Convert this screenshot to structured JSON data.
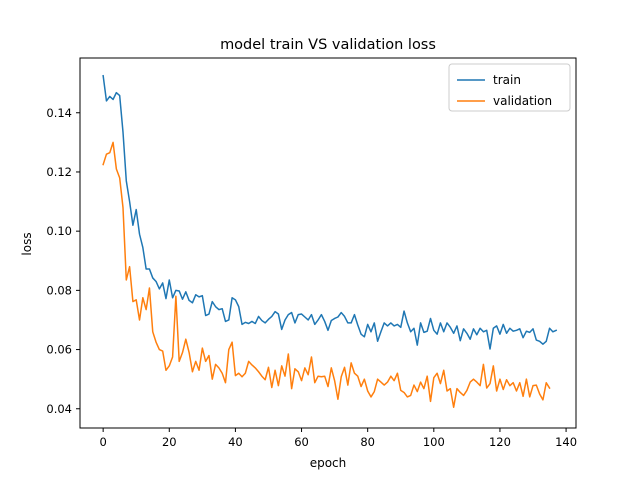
{
  "chart_data": {
    "type": "line",
    "title": "model train VS validation loss",
    "xlabel": "epoch",
    "ylabel": "loss",
    "xlim": [
      -7,
      143
    ],
    "ylim": [
      0.0335,
      0.1585
    ],
    "xticks": [
      0,
      20,
      40,
      60,
      80,
      100,
      120,
      140
    ],
    "yticks": [
      0.04,
      0.06,
      0.08,
      0.1,
      0.12,
      0.14
    ],
    "ytick_labels": [
      "0.04",
      "0.06",
      "0.08",
      "0.10",
      "0.12",
      "0.14"
    ],
    "grid": false,
    "legend_position": "top-right",
    "series": [
      {
        "name": "train",
        "color": "#1f77b4",
        "values": [
          0.1525,
          0.144,
          0.1455,
          0.1445,
          0.1468,
          0.1458,
          0.1335,
          0.117,
          0.11,
          0.102,
          0.1073,
          0.099,
          0.0945,
          0.0872,
          0.0872,
          0.0842,
          0.083,
          0.0805,
          0.0825,
          0.0772,
          0.0835,
          0.0775,
          0.08,
          0.0798,
          0.077,
          0.0795,
          0.0766,
          0.0758,
          0.0785,
          0.0778,
          0.0782,
          0.0715,
          0.072,
          0.0762,
          0.0745,
          0.0735,
          0.0738,
          0.0695,
          0.07,
          0.0775,
          0.0768,
          0.0745,
          0.0685,
          0.0692,
          0.0688,
          0.0695,
          0.0688,
          0.0712,
          0.0698,
          0.069,
          0.0702,
          0.0712,
          0.0728,
          0.072,
          0.0668,
          0.07,
          0.0718,
          0.0725,
          0.069,
          0.0718,
          0.072,
          0.071,
          0.07,
          0.0718,
          0.0685,
          0.07,
          0.0718,
          0.0695,
          0.0665,
          0.0698,
          0.0705,
          0.071,
          0.0725,
          0.0712,
          0.069,
          0.069,
          0.0718,
          0.0683,
          0.0652,
          0.0643,
          0.0685,
          0.066,
          0.069,
          0.0628,
          0.066,
          0.069,
          0.068,
          0.069,
          0.068,
          0.0685,
          0.0675,
          0.073,
          0.069,
          0.066,
          0.0672,
          0.0615,
          0.069,
          0.0658,
          0.0662,
          0.0705,
          0.0665,
          0.0652,
          0.069,
          0.066,
          0.069,
          0.0675,
          0.0655,
          0.068,
          0.063,
          0.067,
          0.0655,
          0.0635,
          0.067,
          0.065,
          0.0672,
          0.066,
          0.0665,
          0.0602,
          0.0672,
          0.068,
          0.0652,
          0.0685,
          0.0655,
          0.0672,
          0.0662,
          0.0665,
          0.067,
          0.064,
          0.0662,
          0.0658,
          0.067,
          0.0632,
          0.0628,
          0.0618,
          0.0628,
          0.0672,
          0.066,
          0.0665
        ]
      },
      {
        "name": "validation",
        "color": "#ff7f0e",
        "values": [
          0.1225,
          0.126,
          0.1265,
          0.13,
          0.121,
          0.118,
          0.108,
          0.0835,
          0.088,
          0.0762,
          0.0768,
          0.07,
          0.0775,
          0.0735,
          0.0808,
          0.066,
          0.0625,
          0.06,
          0.0595,
          0.053,
          0.0545,
          0.0575,
          0.078,
          0.056,
          0.059,
          0.0635,
          0.059,
          0.0525,
          0.056,
          0.053,
          0.0605,
          0.056,
          0.058,
          0.05,
          0.055,
          0.0538,
          0.052,
          0.0488,
          0.06,
          0.0625,
          0.0512,
          0.052,
          0.0508,
          0.052,
          0.056,
          0.0548,
          0.0538,
          0.0525,
          0.051,
          0.0498,
          0.054,
          0.0472,
          0.053,
          0.0478,
          0.0545,
          0.051,
          0.0585,
          0.0468,
          0.0535,
          0.0525,
          0.0495,
          0.0538,
          0.0515,
          0.0575,
          0.0488,
          0.051,
          0.0508,
          0.051,
          0.0475,
          0.0538,
          0.0495,
          0.0432,
          0.0508,
          0.054,
          0.048,
          0.0555,
          0.052,
          0.051,
          0.0475,
          0.05,
          0.046,
          0.044,
          0.0458,
          0.05,
          0.049,
          0.048,
          0.049,
          0.051,
          0.0495,
          0.052,
          0.0462,
          0.0455,
          0.044,
          0.0445,
          0.048,
          0.0458,
          0.049,
          0.0468,
          0.051,
          0.0425,
          0.0505,
          0.052,
          0.0485,
          0.053,
          0.046,
          0.0468,
          0.0405,
          0.0468,
          0.0455,
          0.0445,
          0.0462,
          0.049,
          0.05,
          0.049,
          0.0478,
          0.055,
          0.047,
          0.0485,
          0.0545,
          0.046,
          0.05,
          0.0465,
          0.0498,
          0.0478,
          0.0488,
          0.046,
          0.0488,
          0.0442,
          0.05,
          0.044,
          0.0478,
          0.048,
          0.045,
          0.043,
          0.0488,
          0.047
        ]
      }
    ]
  }
}
